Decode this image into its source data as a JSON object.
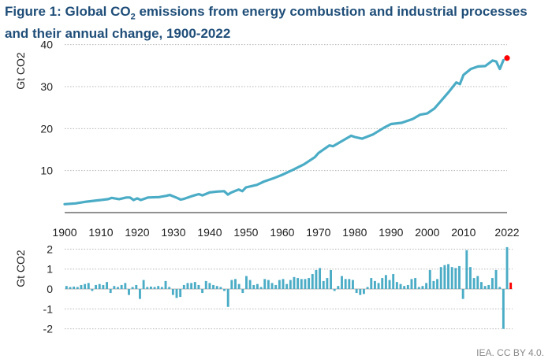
{
  "figure": {
    "title_prefix": "Figure 1: Global CO",
    "title_sub": "2",
    "title_suffix": " emissions from energy combustion and industrial processes and their annual change, 1900-2022",
    "credit": "IEA. CC BY 4.0."
  },
  "colors": {
    "series": "#4bacc6",
    "highlight": "#ff0000",
    "grid": "#b5b5b5",
    "title": "#1f4e79"
  },
  "chart_data": [
    {
      "type": "line",
      "ylabel": "Gt CO2",
      "ylim": [
        0,
        42
      ],
      "yticks": [
        10,
        20,
        30,
        40
      ],
      "xlim": [
        1900,
        2022
      ],
      "xticks": [
        1900,
        1910,
        1920,
        1930,
        1940,
        1950,
        1960,
        1970,
        1980,
        1990,
        2000,
        2010,
        2022
      ],
      "grid": true,
      "x": [
        1900,
        1903,
        1906,
        1909,
        1912,
        1913,
        1915,
        1917,
        1918,
        1919,
        1920,
        1921,
        1923,
        1926,
        1928,
        1929,
        1931,
        1932,
        1933,
        1935,
        1937,
        1938,
        1940,
        1942,
        1944,
        1945,
        1946,
        1948,
        1949,
        1950,
        1953,
        1955,
        1958,
        1960,
        1963,
        1966,
        1969,
        1970,
        1973,
        1974,
        1976,
        1979,
        1980,
        1982,
        1985,
        1988,
        1990,
        1993,
        1996,
        1998,
        2000,
        2002,
        2004,
        2006,
        2008,
        2009,
        2010,
        2012,
        2014,
        2016,
        2018,
        2019,
        2020,
        2021
      ],
      "y": [
        2.0,
        2.2,
        2.6,
        2.9,
        3.2,
        3.5,
        3.2,
        3.6,
        3.6,
        3.0,
        3.4,
        3.0,
        3.6,
        3.7,
        4.0,
        4.2,
        3.5,
        3.1,
        3.3,
        3.9,
        4.4,
        4.1,
        4.8,
        5.0,
        5.1,
        4.3,
        4.8,
        5.5,
        5.1,
        6.0,
        6.6,
        7.4,
        8.3,
        9.0,
        10.2,
        11.5,
        13.2,
        14.2,
        16.0,
        15.8,
        16.8,
        18.3,
        18.0,
        17.6,
        18.6,
        20.2,
        21.1,
        21.4,
        22.3,
        23.3,
        23.6,
        24.8,
        26.8,
        28.8,
        31.0,
        30.6,
        32.8,
        34.2,
        34.8,
        34.9,
        36.2,
        36.0,
        34.2,
        36.3
      ],
      "highlight_point": {
        "x": 2022,
        "y": 36.8
      }
    },
    {
      "type": "bar",
      "ylabel": "Gt CO2",
      "ylim": [
        -2.2,
        2.3
      ],
      "yticks": [
        2,
        1,
        0,
        -1,
        -2
      ],
      "grid": true,
      "x": [
        1901,
        1902,
        1903,
        1904,
        1905,
        1906,
        1907,
        1908,
        1909,
        1910,
        1911,
        1912,
        1913,
        1914,
        1915,
        1916,
        1917,
        1918,
        1919,
        1920,
        1921,
        1922,
        1923,
        1924,
        1925,
        1926,
        1927,
        1928,
        1929,
        1930,
        1931,
        1932,
        1933,
        1934,
        1935,
        1936,
        1937,
        1938,
        1939,
        1940,
        1941,
        1942,
        1943,
        1944,
        1945,
        1946,
        1947,
        1948,
        1949,
        1950,
        1951,
        1952,
        1953,
        1954,
        1955,
        1956,
        1957,
        1958,
        1959,
        1960,
        1961,
        1962,
        1963,
        1964,
        1965,
        1966,
        1967,
        1968,
        1969,
        1970,
        1971,
        1972,
        1973,
        1974,
        1975,
        1976,
        1977,
        1978,
        1979,
        1980,
        1981,
        1982,
        1983,
        1984,
        1985,
        1986,
        1987,
        1988,
        1989,
        1990,
        1991,
        1992,
        1993,
        1994,
        1995,
        1996,
        1997,
        1998,
        1999,
        2000,
        2001,
        2002,
        2003,
        2004,
        2005,
        2006,
        2007,
        2008,
        2009,
        2010,
        2011,
        2012,
        2013,
        2014,
        2015,
        2016,
        2017,
        2018,
        2019,
        2020,
        2021,
        2022
      ],
      "values": [
        0.15,
        0.1,
        0.12,
        0.1,
        0.2,
        0.25,
        0.3,
        -0.1,
        0.2,
        0.25,
        0.2,
        0.35,
        -0.2,
        0.15,
        0.1,
        0.2,
        0.3,
        -0.3,
        0.1,
        0.2,
        -0.5,
        0.45,
        0.1,
        0.12,
        0.1,
        0.15,
        0.1,
        0.4,
        0.1,
        -0.3,
        -0.45,
        -0.4,
        0.2,
        0.3,
        0.3,
        0.35,
        0.2,
        -0.2,
        0.4,
        0.3,
        0.2,
        0.15,
        0.1,
        -0.1,
        -0.9,
        0.45,
        0.5,
        0.25,
        -0.2,
        0.65,
        0.45,
        0.2,
        0.25,
        0.1,
        0.5,
        0.45,
        0.3,
        0.2,
        0.45,
        0.5,
        0.25,
        0.45,
        0.6,
        0.55,
        0.5,
        0.5,
        0.55,
        0.75,
        0.95,
        1.05,
        0.4,
        0.55,
        0.95,
        -0.1,
        0.15,
        0.65,
        0.5,
        0.5,
        0.45,
        -0.2,
        -0.3,
        -0.25,
        0.1,
        0.55,
        0.4,
        0.3,
        0.55,
        0.7,
        0.45,
        0.75,
        0.35,
        0.25,
        0.15,
        0.2,
        0.5,
        0.55,
        0.1,
        0.15,
        0.3,
        0.95,
        0.4,
        0.5,
        1.1,
        1.2,
        1.25,
        1.1,
        1.05,
        1.15,
        -0.5,
        1.95,
        1.1,
        0.55,
        0.65,
        0.35,
        0.15,
        0.2,
        0.55,
        0.95,
        0.1,
        -2.0,
        2.1,
        0.32
      ],
      "highlight_index": 121
    }
  ]
}
